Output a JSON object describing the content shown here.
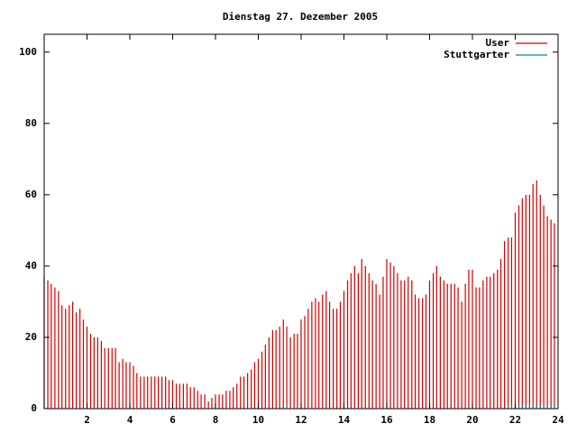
{
  "chart_data": {
    "type": "impulse",
    "title": "Dienstag 27. Dezember 2005",
    "x": [
      0,
      0.17,
      0.33,
      0.5,
      0.67,
      0.83,
      1,
      1.17,
      1.33,
      1.5,
      1.67,
      1.83,
      2,
      2.17,
      2.33,
      2.5,
      2.67,
      2.83,
      3,
      3.17,
      3.33,
      3.5,
      3.67,
      3.83,
      4,
      4.17,
      4.33,
      4.5,
      4.67,
      4.83,
      5,
      5.17,
      5.33,
      5.5,
      5.67,
      5.83,
      6,
      6.17,
      6.33,
      6.5,
      6.67,
      6.83,
      7,
      7.17,
      7.33,
      7.5,
      7.67,
      7.83,
      8,
      8.17,
      8.33,
      8.5,
      8.67,
      8.83,
      9,
      9.17,
      9.33,
      9.5,
      9.67,
      9.83,
      10,
      10.17,
      10.33,
      10.5,
      10.67,
      10.83,
      11,
      11.17,
      11.33,
      11.5,
      11.67,
      11.83,
      12,
      12.17,
      12.33,
      12.5,
      12.67,
      12.83,
      13,
      13.17,
      13.33,
      13.5,
      13.67,
      13.83,
      14,
      14.17,
      14.33,
      14.5,
      14.67,
      14.83,
      15,
      15.17,
      15.33,
      15.5,
      15.67,
      15.83,
      16,
      16.17,
      16.33,
      16.5,
      16.67,
      16.83,
      17,
      17.17,
      17.33,
      17.5,
      17.67,
      17.83,
      18,
      18.17,
      18.33,
      18.5,
      18.67,
      18.83,
      19,
      19.17,
      19.33,
      19.5,
      19.67,
      19.83,
      20,
      20.17,
      20.33,
      20.5,
      20.67,
      20.83,
      21,
      21.17,
      21.33,
      21.5,
      21.67,
      21.83,
      22,
      22.17,
      22.33,
      22.5,
      22.67,
      22.83,
      23,
      23.17,
      23.33,
      23.5,
      23.67,
      23.83
    ],
    "series": [
      {
        "name": "User",
        "color": "#cc0000",
        "values": [
          37,
          36,
          35,
          34,
          33,
          29,
          28,
          29,
          30,
          27,
          28,
          25,
          23,
          21,
          20,
          20,
          19,
          17,
          17,
          17,
          17,
          13,
          14,
          13,
          13,
          12,
          10,
          9,
          9,
          9,
          9,
          9,
          9,
          9,
          9,
          8,
          8,
          7,
          7,
          7,
          7,
          6,
          6,
          5,
          4,
          4,
          2,
          3,
          4,
          4,
          4,
          5,
          5,
          6,
          7,
          9,
          9,
          10,
          11,
          13,
          14,
          16,
          18,
          20,
          22,
          22,
          23,
          25,
          23,
          20,
          21,
          21,
          25,
          26,
          28,
          30,
          31,
          30,
          32,
          33,
          30,
          28,
          28,
          30,
          33,
          36,
          38,
          40,
          38,
          42,
          40,
          38,
          36,
          35,
          32,
          37,
          42,
          41,
          40,
          38,
          36,
          36,
          37,
          36,
          32,
          31,
          31,
          32,
          36,
          38,
          40,
          37,
          36,
          35,
          35,
          35,
          34,
          30,
          35,
          39,
          39,
          34,
          34,
          36,
          37,
          37,
          38,
          39,
          42,
          47,
          48,
          48,
          55,
          57,
          59,
          60,
          60,
          63,
          64,
          60,
          57,
          54,
          53,
          52
        ]
      },
      {
        "name": "Stuttgarter",
        "color": "#008b8b",
        "values": [
          0,
          0,
          0,
          0,
          0,
          0,
          0,
          0,
          0,
          0,
          0,
          0,
          0,
          0,
          0,
          0,
          0,
          0,
          0,
          0,
          0,
          0,
          0,
          0,
          0,
          0,
          0,
          0,
          0,
          0,
          0,
          0,
          0,
          0,
          0,
          0,
          0,
          0,
          0,
          0,
          0,
          0,
          0,
          0,
          0,
          0,
          0,
          0,
          0,
          0,
          0,
          0,
          0,
          0,
          0,
          0,
          0,
          0,
          0,
          0,
          0,
          0,
          0,
          0,
          0,
          0,
          0,
          0,
          1,
          0,
          0,
          0,
          0,
          0,
          0,
          0,
          0,
          0,
          0,
          0,
          0,
          0,
          0,
          0,
          0,
          0,
          0,
          0,
          0,
          0,
          0,
          0,
          0,
          0,
          0,
          0,
          0,
          0,
          0,
          0,
          0,
          0,
          0,
          0,
          0,
          0,
          0,
          0,
          0,
          0,
          0,
          0,
          0,
          0,
          0,
          0,
          0,
          0,
          0,
          0,
          0,
          0,
          0,
          0,
          0,
          0,
          0,
          0,
          0,
          0,
          1,
          1,
          1,
          1,
          1,
          1,
          1,
          1,
          1,
          1,
          1,
          1,
          1,
          1
        ]
      }
    ],
    "xlim": [
      0,
      24
    ],
    "xticks": [
      2,
      4,
      6,
      8,
      10,
      12,
      14,
      16,
      18,
      20,
      22,
      24
    ],
    "ylim": [
      0,
      105
    ],
    "yticks": [
      0,
      20,
      40,
      60,
      80,
      100
    ],
    "legend": "top-right"
  }
}
